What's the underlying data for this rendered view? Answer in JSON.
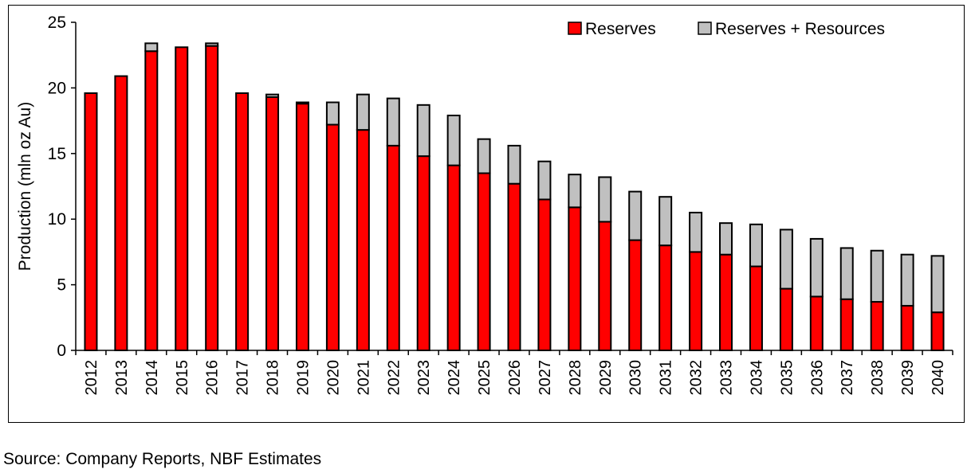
{
  "chart_data": {
    "type": "bar",
    "stacked": true,
    "title": "",
    "xlabel": "",
    "ylabel": "Production (mln oz Au)",
    "ylim": [
      0,
      25
    ],
    "yticks": [
      0,
      5,
      10,
      15,
      20,
      25
    ],
    "grid": false,
    "legend_position": "top-right",
    "categories": [
      "2012",
      "2013",
      "2014",
      "2015",
      "2016",
      "2017",
      "2018",
      "2019",
      "2020",
      "2021",
      "2022",
      "2023",
      "2024",
      "2025",
      "2026",
      "2027",
      "2028",
      "2029",
      "2030",
      "2031",
      "2032",
      "2033",
      "2034",
      "2035",
      "2036",
      "2037",
      "2038",
      "2039",
      "2040"
    ],
    "series": [
      {
        "name": "Reserves",
        "color": "#ff0000",
        "values": [
          19.6,
          20.9,
          22.8,
          23.1,
          23.2,
          19.6,
          19.3,
          18.8,
          17.2,
          16.8,
          15.6,
          14.8,
          14.1,
          13.5,
          12.7,
          11.5,
          10.9,
          9.8,
          8.4,
          8.0,
          7.5,
          7.3,
          6.4,
          4.7,
          4.1,
          3.9,
          3.7,
          3.4,
          2.9
        ]
      },
      {
        "name": "Reserves + Resources",
        "color": "#c0c0c0",
        "values": [
          0.0,
          0.0,
          0.6,
          0.0,
          0.2,
          0.0,
          0.2,
          0.1,
          1.7,
          2.7,
          3.6,
          3.9,
          3.8,
          2.6,
          2.9,
          2.9,
          2.5,
          3.4,
          3.7,
          3.7,
          3.0,
          2.4,
          3.2,
          4.5,
          4.4,
          3.9,
          3.9,
          3.9,
          4.3
        ]
      }
    ]
  },
  "source_note": "Source: Company Reports, NBF Estimates"
}
